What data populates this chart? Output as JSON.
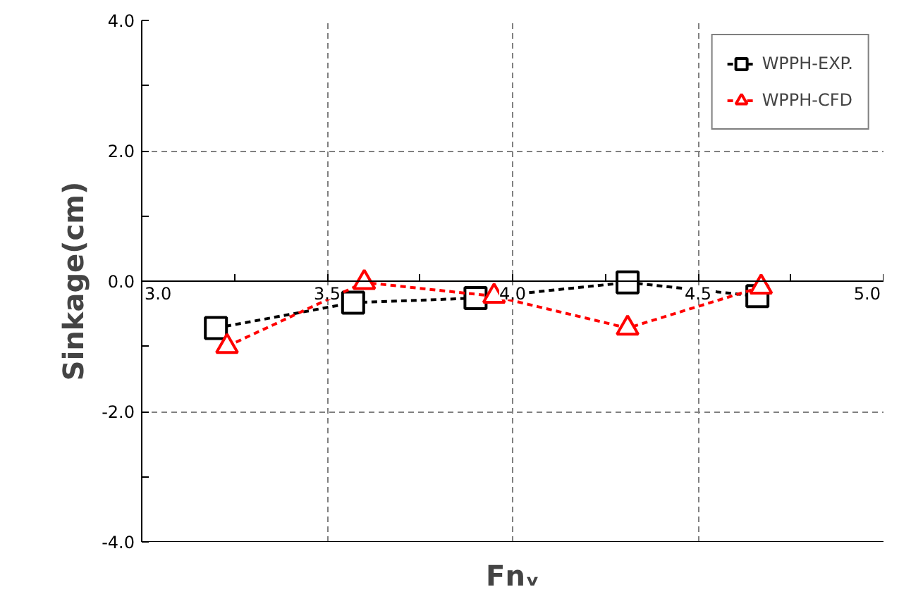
{
  "chart_data": {
    "type": "line",
    "xlabel": "Fnᵥ",
    "ylabel": "Sinkage(cm)",
    "xlim": [
      3.0,
      5.0
    ],
    "ylim": [
      -4.0,
      4.0
    ],
    "xticks": [
      {
        "value": 3.0,
        "label": "3.0"
      },
      {
        "value": 3.25,
        "label": null
      },
      {
        "value": 3.5,
        "label": "3.5"
      },
      {
        "value": 3.75,
        "label": null
      },
      {
        "value": 4.0,
        "label": "4.0"
      },
      {
        "value": 4.25,
        "label": null
      },
      {
        "value": 4.5,
        "label": "4.5"
      },
      {
        "value": 4.75,
        "label": null
      },
      {
        "value": 5.0,
        "label": "5.0"
      }
    ],
    "yticks": [
      {
        "value": -4,
        "label": "-4.0"
      },
      {
        "value": -3,
        "label": null
      },
      {
        "value": -2,
        "label": "-2.0"
      },
      {
        "value": -1,
        "label": null
      },
      {
        "value": 0,
        "label": "0.0"
      },
      {
        "value": 1,
        "label": null
      },
      {
        "value": 2,
        "label": "2.0"
      },
      {
        "value": 3,
        "label": null
      },
      {
        "value": 4,
        "label": "4.0"
      }
    ],
    "grid": true,
    "legend": "top right",
    "line_style": "dashed",
    "series": [
      {
        "name": "WPPH-EXP.",
        "color": "#000000",
        "marker": "square",
        "x": [
          3.2,
          3.57,
          3.9,
          4.31,
          4.66
        ],
        "values": [
          -0.72,
          -0.33,
          -0.26,
          -0.02,
          -0.23
        ]
      },
      {
        "name": "WPPH-CFD",
        "color": "#ff0000",
        "marker": "triangle",
        "x": [
          3.23,
          3.6,
          3.95,
          4.31,
          4.67
        ],
        "values": [
          -1.0,
          -0.02,
          -0.23,
          -0.72,
          -0.09
        ]
      }
    ]
  }
}
